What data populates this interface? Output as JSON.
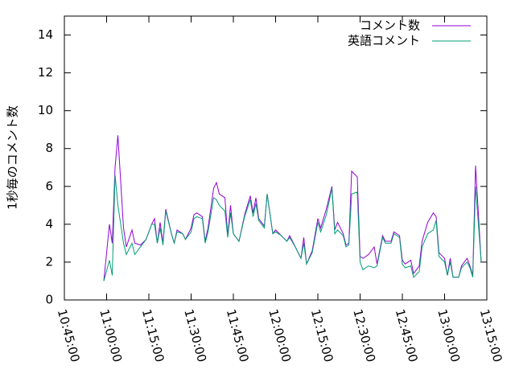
{
  "chart_data": {
    "type": "line",
    "ylabel": "1秒毎のコメント数",
    "x": [
      "10:59:00",
      "11:01:00",
      "11:02:00",
      "11:03:00",
      "11:04:00",
      "11:06:00",
      "11:07:00",
      "11:09:00",
      "11:10:00",
      "11:12:00",
      "11:14:00",
      "11:16:00",
      "11:17:00",
      "11:18:00",
      "11:19:00",
      "11:20:00",
      "11:21:00",
      "11:23:00",
      "11:24:00",
      "11:25:00",
      "11:27:00",
      "11:28:00",
      "11:30:00",
      "11:31:00",
      "11:32:00",
      "11:34:00",
      "11:35:00",
      "11:36:00",
      "11:38:00",
      "11:39:00",
      "11:40:00",
      "11:42:00",
      "11:43:00",
      "11:44:00",
      "11:45:00",
      "11:47:00",
      "11:49:00",
      "11:51:00",
      "11:52:00",
      "11:53:00",
      "11:54:00",
      "11:56:00",
      "11:57:00",
      "11:59:00",
      "12:00:00",
      "12:02:00",
      "12:04:00",
      "12:05:00",
      "12:07:00",
      "12:09:00",
      "12:10:00",
      "12:11:00",
      "12:13:00",
      "12:15:00",
      "12:16:00",
      "12:18:00",
      "12:20:00",
      "12:21:00",
      "12:22:00",
      "12:24:00",
      "12:25:00",
      "12:26:00",
      "12:27:00",
      "12:29:00",
      "12:30:00",
      "12:31:00",
      "12:33:00",
      "12:35:00",
      "12:36:00",
      "12:38:00",
      "12:39:00",
      "12:41:00",
      "12:42:00",
      "12:44:00",
      "12:45:00",
      "12:46:00",
      "12:48:00",
      "12:49:00",
      "12:51:00",
      "12:52:00",
      "12:54:00",
      "12:56:00",
      "12:57:00",
      "12:58:00",
      "13:00:00",
      "13:01:00",
      "13:02:00",
      "13:03:00",
      "13:05:00",
      "13:06:00",
      "13:08:00",
      "13:09:00",
      "13:10:00",
      "13:11:00",
      "13:13:00"
    ],
    "series": [
      {
        "name": "コメント数",
        "color": "#9400d3",
        "values": [
          1.0,
          4.0,
          3.0,
          7.0,
          8.7,
          3.8,
          2.8,
          3.7,
          3.0,
          2.9,
          3.2,
          4.0,
          4.3,
          3.0,
          4.1,
          3.0,
          4.8,
          3.5,
          3.0,
          3.7,
          3.5,
          3.2,
          3.8,
          4.5,
          4.6,
          4.4,
          3.1,
          3.8,
          5.9,
          6.2,
          5.6,
          5.4,
          3.4,
          5.0,
          3.5,
          3.1,
          4.5,
          5.5,
          4.6,
          5.4,
          4.3,
          3.9,
          5.6,
          3.5,
          3.7,
          3.4,
          3.1,
          3.4,
          2.8,
          2.2,
          3.3,
          1.9,
          2.6,
          4.3,
          3.8,
          4.8,
          6.0,
          3.7,
          4.1,
          3.5,
          2.9,
          3.0,
          6.8,
          6.5,
          2.3,
          2.2,
          2.4,
          2.8,
          1.9,
          3.4,
          3.1,
          3.1,
          3.6,
          3.4,
          2.1,
          1.9,
          2.1,
          1.4,
          1.8,
          3.1,
          4.1,
          4.6,
          4.4,
          2.5,
          2.2,
          1.3,
          2.2,
          1.2,
          1.2,
          1.8,
          2.2,
          1.8,
          1.3,
          7.1,
          2.0
        ]
      },
      {
        "name": "英語コメント",
        "color": "#009e73",
        "values": [
          1.0,
          2.1,
          1.3,
          6.6,
          5.0,
          3.0,
          2.4,
          3.0,
          2.4,
          2.8,
          3.2,
          4.0,
          4.0,
          3.0,
          3.8,
          2.9,
          4.7,
          3.5,
          3.0,
          3.6,
          3.5,
          3.2,
          3.6,
          4.3,
          4.4,
          4.3,
          3.0,
          3.6,
          5.4,
          5.3,
          5.0,
          4.7,
          3.3,
          4.6,
          3.5,
          3.1,
          4.4,
          5.3,
          4.4,
          5.1,
          4.2,
          3.8,
          5.6,
          3.5,
          3.6,
          3.4,
          3.1,
          3.3,
          2.8,
          2.2,
          3.0,
          1.9,
          2.5,
          4.1,
          3.6,
          4.5,
          5.9,
          3.5,
          3.7,
          3.4,
          2.8,
          2.9,
          5.6,
          5.7,
          2.0,
          1.6,
          1.8,
          1.7,
          1.8,
          3.3,
          3.0,
          3.0,
          3.5,
          3.3,
          1.9,
          1.7,
          1.8,
          1.2,
          1.5,
          2.8,
          3.5,
          3.7,
          4.2,
          2.3,
          2.0,
          1.3,
          2.0,
          1.2,
          1.2,
          1.7,
          2.0,
          1.7,
          1.2,
          6.0,
          2.0
        ]
      }
    ],
    "xlim": [
      "10:45:00",
      "13:15:00"
    ],
    "xticks": [
      "10:45:00",
      "11:00:00",
      "11:15:00",
      "11:30:00",
      "11:45:00",
      "12:00:00",
      "12:15:00",
      "12:30:00",
      "12:45:00",
      "13:00:00",
      "13:15:00"
    ],
    "ylim": [
      0,
      15
    ],
    "yticks": [
      0,
      2,
      4,
      6,
      8,
      10,
      12,
      14
    ],
    "legend": "top-right",
    "grid": false
  }
}
